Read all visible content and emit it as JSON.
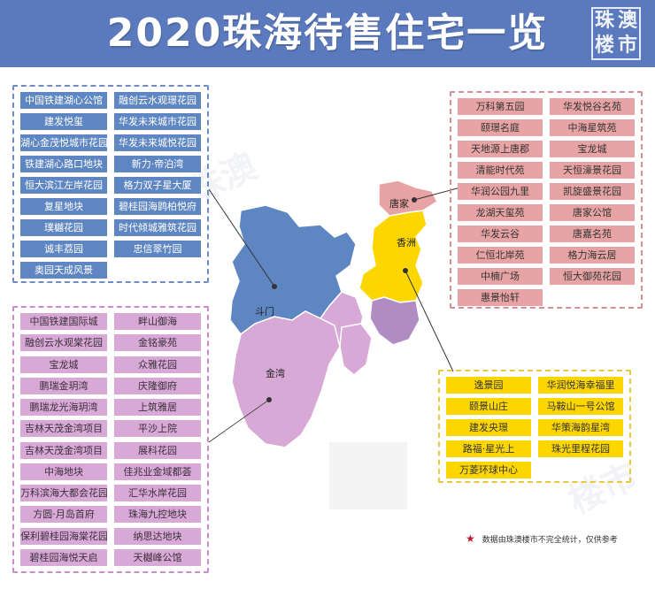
{
  "header": {
    "title": "2020珠海待售住宅一览",
    "logo_chars": [
      "珠",
      "澳",
      "楼",
      "市"
    ]
  },
  "watermark": [
    "珠澳",
    "楼市"
  ],
  "regions": {
    "tangjia": "唐家",
    "xiangzhou": "香洲",
    "doumen": "斗门",
    "jinwan": "金湾"
  },
  "doumen_list": [
    "中国铁建湖心公馆",
    "融创云水观璟花园",
    "建发悦玺",
    "华发未来城市花园",
    "湖心金茂悦城市花园",
    "华发未来城悦花园",
    "铁建湖心路口地块",
    "新力·帝泊湾",
    "恒大滨江左岸花园",
    "格力双子星大厦",
    "复星地块",
    "碧桂园海鹍柏悦府",
    "璞樾花园",
    "时代倾城雅筑花园",
    "诚丰荔园",
    "忠信翠竹园",
    "奥园天成风景"
  ],
  "tangjia_list": [
    "万科第五园",
    "华发悦谷名苑",
    "颐璟名庭",
    "中海星筑苑",
    "天地源上唐郡",
    "宝龙城",
    "清能时代苑",
    "天恒濠景花园",
    "华润公园九里",
    "凯旋盛景花园",
    "龙湖天玺苑",
    "唐家公馆",
    "华发云谷",
    "唐嘉名苑",
    "仁恒北岸苑",
    "格力海云居",
    "中楠广场",
    "恒大御苑花园",
    "惠景怡轩"
  ],
  "jinwan_list": [
    "中国铁建国际城",
    "畔山御海",
    "融创云水观棠花园",
    "金铭豪苑",
    "宝龙城",
    "众雅花园",
    "鹏瑞金玥湾",
    "庆隆御府",
    "鹏瑞龙光海玥湾",
    "上筑雅居",
    "吉林天茂金湾项目",
    "平沙上院",
    "吉林天茂金湾项目",
    "展科花园",
    "中海地块",
    "佳兆业金域都荟",
    "万科滨海大都会花园",
    "汇华水岸花园",
    "方圆·月岛首府",
    "珠海九控地块",
    "保利碧桂园海棠花园",
    "纳思达地块",
    "碧桂园海悦天启",
    "天樾峰公馆"
  ],
  "xiangzhou_list": [
    "逸景园",
    "华润悦海幸福里",
    "颐景山庄",
    "马鞍山一号公馆",
    "建发央璟",
    "华策海韵星湾",
    "路福·星光上",
    "珠光里程花园",
    "万菱环球中心"
  ],
  "footnote": "数据由珠澳楼市不完全统计，仅供参考",
  "colors": {
    "doumen": "#5e86c2",
    "tangjia": "#e8a4a4",
    "jinwan": "#d8a8d6",
    "xiangzhou": "#fcd600",
    "header": "#5b79bd"
  }
}
